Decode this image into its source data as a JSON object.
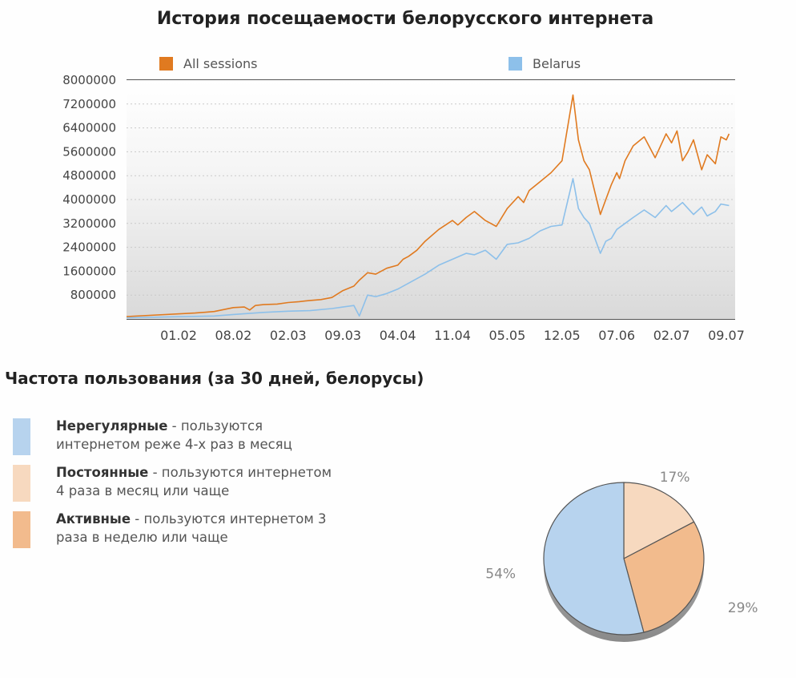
{
  "line_chart_title": "История посещаемости белорусского интернета",
  "pie_chart_title": "Частота пользования (за 30 дней, белорусы)",
  "colors": {
    "all_sessions": "#e07a20",
    "belarus": "#8dc0ea",
    "pie_irregular": "#b7d3ee",
    "pie_regular": "#f7d9bf",
    "pie_active": "#f2bb8d"
  },
  "chart_data": [
    {
      "type": "line",
      "title": "История посещаемости белорусского интернета",
      "legend_position": "top",
      "grid": true,
      "x_tick_labels": [
        "01.02",
        "08.02",
        "02.03",
        "09.03",
        "04.04",
        "11.04",
        "05.05",
        "12.05",
        "07.06",
        "02.07",
        "09.07"
      ],
      "y_tick_labels": [
        "8000000",
        "7200000",
        "6400000",
        "5600000",
        "4800000",
        "4000000",
        "3200000",
        "2400000",
        "1600000",
        "800000"
      ],
      "ylim": [
        0,
        8000000
      ],
      "series": [
        {
          "name": "All sessions",
          "x": [
            0,
            0.3,
            0.65,
            1,
            1.2,
            1.3,
            1.4,
            1.55,
            1.8,
            2,
            2.2,
            2.4,
            2.6,
            2.8,
            3,
            3.2,
            3.3,
            3.45,
            3.6,
            3.8,
            4,
            4.1,
            4.2,
            4.35,
            4.5,
            4.75,
            5,
            5.1,
            5.25,
            5.4,
            5.6,
            5.8,
            6,
            6.2,
            6.3,
            6.4,
            6.6,
            6.8,
            7,
            7.2,
            7.3,
            7.4,
            7.5,
            7.7,
            7.8,
            7.9,
            8,
            8.05,
            8.15,
            8.3,
            8.5,
            8.7,
            8.9,
            9,
            9.1,
            9.2,
            9.3,
            9.4,
            9.55,
            9.65,
            9.8,
            9.9,
            10,
            10.05
          ],
          "values": [
            80000,
            200000,
            250000,
            380000,
            400000,
            300000,
            450000,
            480000,
            500000,
            550000,
            580000,
            620000,
            650000,
            720000,
            950000,
            1100000,
            1300000,
            1550000,
            1500000,
            1700000,
            1800000,
            2000000,
            2100000,
            2300000,
            2600000,
            3000000,
            3300000,
            3150000,
            3400000,
            3600000,
            3300000,
            3100000,
            3700000,
            4100000,
            3900000,
            4300000,
            4600000,
            4900000,
            5300000,
            7500000,
            6000000,
            5300000,
            5000000,
            3500000,
            4000000,
            4500000,
            4900000,
            4700000,
            5300000,
            5800000,
            6100000,
            5400000,
            6200000,
            5900000,
            6300000,
            5300000,
            5600000,
            6000000,
            5000000,
            5500000,
            5200000,
            6100000,
            6000000,
            6200000
          ]
        },
        {
          "name": "Belarus",
          "x": [
            0,
            0.65,
            1,
            1.55,
            2,
            2.4,
            2.8,
            3,
            3.2,
            3.3,
            3.45,
            3.6,
            3.8,
            4,
            4.2,
            4.5,
            4.75,
            5,
            5.25,
            5.4,
            5.6,
            5.8,
            6,
            6.2,
            6.4,
            6.6,
            6.8,
            7,
            7.2,
            7.3,
            7.4,
            7.5,
            7.7,
            7.8,
            7.9,
            8,
            8.15,
            8.3,
            8.5,
            8.7,
            8.9,
            9,
            9.2,
            9.4,
            9.55,
            9.65,
            9.8,
            9.9,
            10.05
          ],
          "values": [
            40000,
            100000,
            150000,
            220000,
            260000,
            280000,
            350000,
            400000,
            450000,
            100000,
            800000,
            750000,
            850000,
            1000000,
            1200000,
            1500000,
            1800000,
            2000000,
            2200000,
            2150000,
            2300000,
            2000000,
            2500000,
            2550000,
            2700000,
            2950000,
            3100000,
            3150000,
            4700000,
            3700000,
            3400000,
            3200000,
            2200000,
            2600000,
            2700000,
            3000000,
            3200000,
            3400000,
            3650000,
            3400000,
            3800000,
            3600000,
            3900000,
            3500000,
            3750000,
            3450000,
            3600000,
            3850000,
            3800000
          ]
        }
      ]
    },
    {
      "type": "pie",
      "title": "Частота пользования (за 30 дней, белорусы)",
      "categories": [
        "Нерегулярные",
        "Постоянные",
        "Активные"
      ],
      "values": [
        54,
        17,
        29
      ],
      "value_labels": [
        "54%",
        "17%",
        "29%"
      ],
      "legend": [
        {
          "name": "Нерегулярные",
          "desc_line1": " - пользуются",
          "desc_line2": "интернетом реже 4-х раз в месяц"
        },
        {
          "name": "Постоянные",
          "desc_line1": " - пользуются интернетом",
          "desc_line2": "4 раза в месяц или чаще"
        },
        {
          "name": "Активные",
          "desc_line1": " - пользуются интернетом 3",
          "desc_line2": "раза в неделю или чаще"
        }
      ]
    }
  ]
}
